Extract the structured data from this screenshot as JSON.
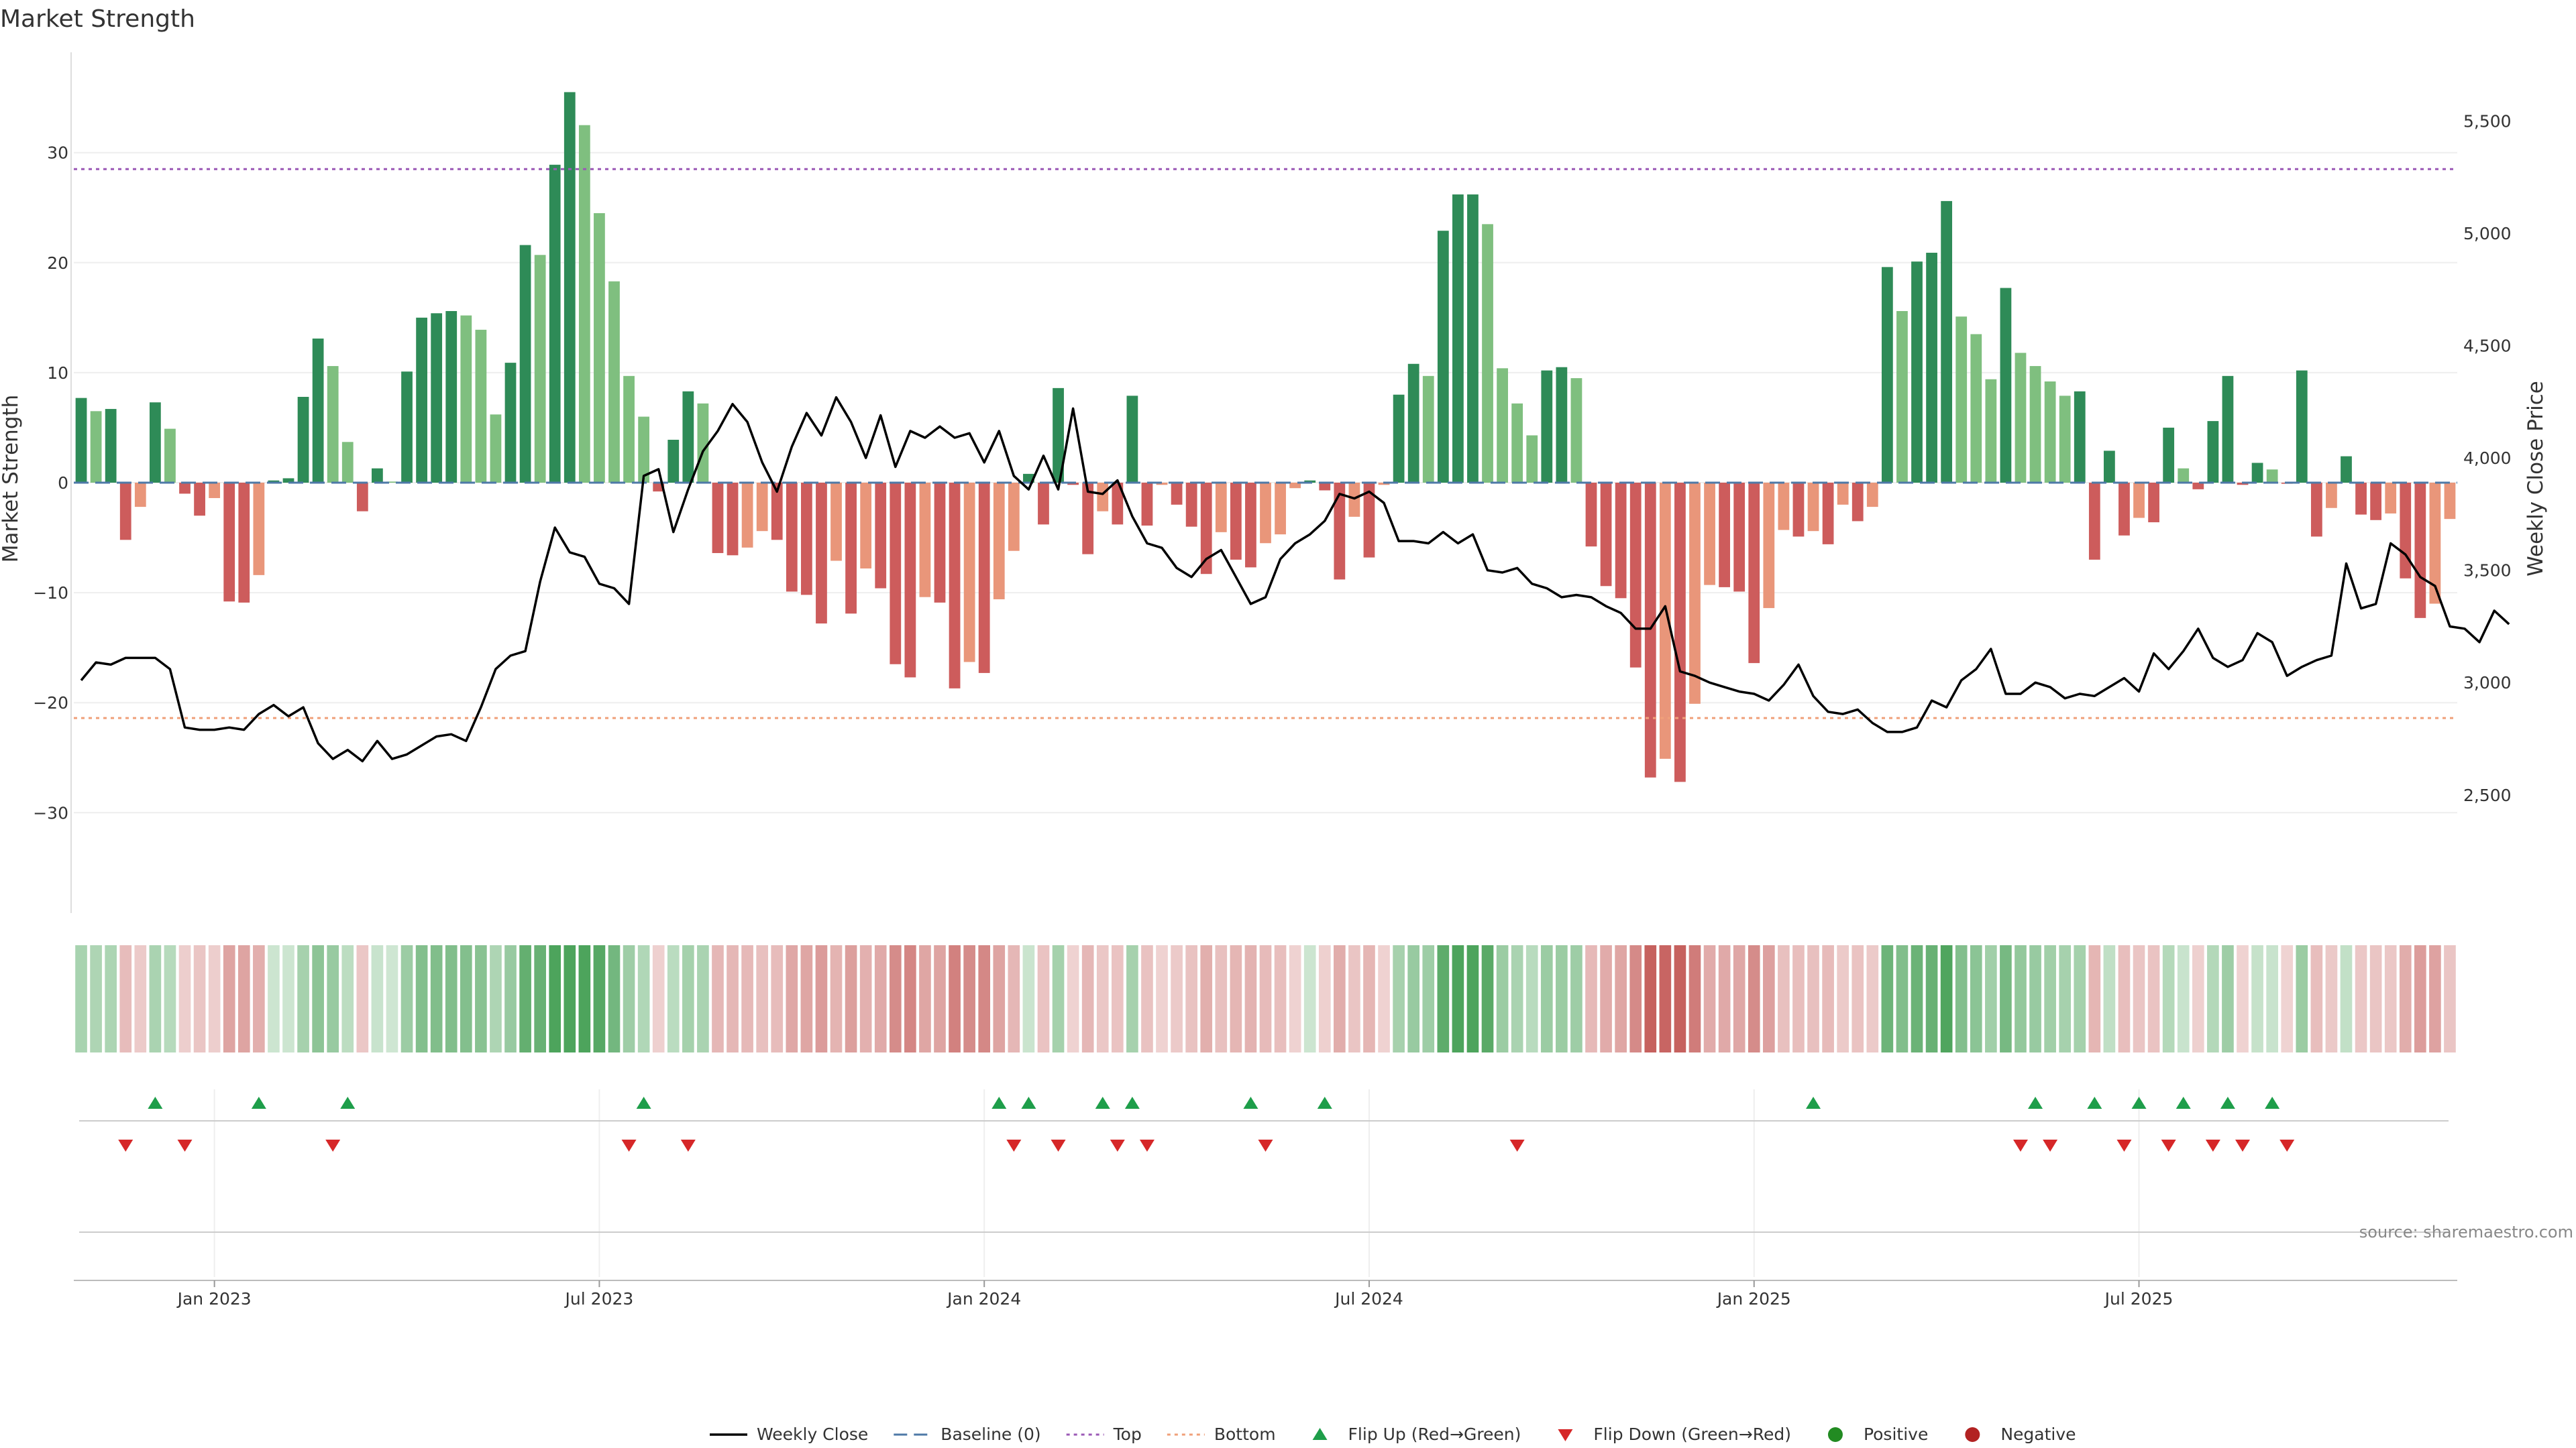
{
  "chart_data": {
    "type": "bar",
    "title": "Market Strength",
    "ylabel": "Market Strength",
    "y2label": "Weekly Close Price",
    "ylim": [
      -39,
      39
    ],
    "y2lim": [
      1980,
      5800
    ],
    "yticks": [
      30,
      20,
      10,
      0,
      -10,
      -20,
      -30
    ],
    "yticklabels": [
      "30",
      "20",
      "10",
      "0",
      "−10",
      "−20",
      "−30"
    ],
    "y2ticks": [
      5500,
      5000,
      4500,
      4000,
      3500,
      3000,
      2500
    ],
    "y2ticklabels": [
      "5,500",
      "5,000",
      "4,500",
      "4,000",
      "3,500",
      "3,000",
      "2,500"
    ],
    "xticklabels": [
      "Jan 2023",
      "Jul 2023",
      "Jan 2024",
      "Jul 2024",
      "Jan 2025",
      "Jul 2025"
    ],
    "xtick_weeks": [
      9,
      35,
      61,
      87,
      113,
      139
    ],
    "top_line": 28.5,
    "bottom_line": -21.4,
    "grid": true,
    "legend_position": "bottom",
    "source": "source: sharemaestro.com",
    "x_start": "2022-10-31",
    "x_interval": "weekly",
    "strength": [
      7.7,
      6.5,
      6.7,
      -5.2,
      -2.2,
      7.3,
      4.9,
      -1.0,
      -3.0,
      -1.4,
      -10.8,
      -10.9,
      -8.4,
      0.2,
      0.4,
      7.8,
      13.1,
      10.6,
      3.7,
      -2.6,
      1.3,
      0.1,
      10.1,
      15.0,
      15.4,
      15.6,
      15.2,
      13.9,
      6.2,
      10.9,
      21.6,
      20.7,
      28.9,
      35.5,
      32.5,
      24.5,
      18.3,
      9.7,
      6.0,
      -0.8,
      3.9,
      8.3,
      7.2,
      -6.4,
      -6.6,
      -5.9,
      -4.4,
      -5.2,
      -9.9,
      -10.2,
      -12.8,
      -7.1,
      -11.9,
      -7.8,
      -9.6,
      -16.5,
      -17.7,
      -10.4,
      -10.9,
      -18.7,
      -16.3,
      -17.3,
      -10.6,
      -6.2,
      0.8,
      -3.8,
      8.6,
      -0.2,
      -6.5,
      -2.6,
      -3.8,
      7.9,
      -3.9,
      -0.2,
      -2.0,
      -4.0,
      -8.3,
      -4.5,
      -7.0,
      -7.7,
      -5.5,
      -4.7,
      -0.5,
      0.2,
      -0.7,
      -8.8,
      -3.1,
      -6.8,
      -0.2,
      8.0,
      10.8,
      9.7,
      22.9,
      26.2,
      26.2,
      23.5,
      10.4,
      7.2,
      4.3,
      10.2,
      10.5,
      9.5,
      -5.8,
      -9.4,
      -10.5,
      -16.8,
      -26.8,
      -25.1,
      -27.2,
      -20.1,
      -9.3,
      -9.5,
      -9.9,
      -16.4,
      -11.4,
      -4.3,
      -4.9,
      -4.4,
      -5.6,
      -2.0,
      -3.5,
      -2.2,
      19.6,
      15.6,
      20.1,
      20.9,
      25.6,
      15.1,
      13.5,
      9.4,
      17.7,
      11.8,
      10.6,
      9.2,
      7.9,
      8.3,
      -7.0,
      2.9,
      -4.8,
      -3.2,
      -3.6,
      5.0,
      1.3,
      -0.6,
      5.6,
      9.7,
      -0.2,
      1.8,
      1.2,
      -0.1,
      10.2,
      -4.9,
      -2.3,
      2.4,
      -2.9,
      -3.4,
      -2.8,
      -8.7,
      -12.3,
      -11.0,
      -3.3
    ],
    "weekly_close": [
      3010,
      3090,
      3080,
      3110,
      3110,
      3110,
      3060,
      2800,
      2790,
      2790,
      2800,
      2790,
      2860,
      2900,
      2850,
      2890,
      2730,
      2660,
      2700,
      2650,
      2740,
      2660,
      2680,
      2720,
      2760,
      2770,
      2740,
      2890,
      3060,
      3120,
      3140,
      3450,
      3690,
      3580,
      3560,
      3440,
      3420,
      3350,
      3920,
      3950,
      3670,
      3860,
      4030,
      4120,
      4240,
      4160,
      3980,
      3850,
      4050,
      4200,
      4100,
      4270,
      4160,
      4000,
      4190,
      3960,
      4120,
      4090,
      4140,
      4090,
      4110,
      3980,
      4120,
      3920,
      3860,
      4010,
      3860,
      4220,
      3850,
      3840,
      3900,
      3740,
      3620,
      3600,
      3510,
      3470,
      3550,
      3590,
      3470,
      3350,
      3380,
      3550,
      3620,
      3660,
      3720,
      3840,
      3820,
      3850,
      3800,
      3630,
      3630,
      3620,
      3670,
      3620,
      3660,
      3500,
      3490,
      3510,
      3440,
      3420,
      3380,
      3390,
      3380,
      3340,
      3310,
      3240,
      3240,
      3340,
      3050,
      3030,
      3000,
      2980,
      2960,
      2950,
      2920,
      2990,
      3080,
      2940,
      2870,
      2860,
      2880,
      2820,
      2780,
      2780,
      2800,
      2920,
      2890,
      3010,
      3060,
      3150,
      2950,
      2950,
      3000,
      2980,
      2930,
      2950,
      2940,
      2980,
      3020,
      2960,
      3130,
      3060,
      3140,
      3240,
      3110,
      3070,
      3100,
      3220,
      3180,
      3030,
      3070,
      3100,
      3120,
      3530,
      3330,
      3350,
      3620,
      3570,
      3470,
      3430,
      3250,
      3240,
      3180,
      3320,
      3260
    ]
  },
  "heat_strip": "weekly strength shading (green = positive, red = negative)",
  "flip_up_weeks": [
    5,
    12,
    18,
    38,
    62,
    64,
    69,
    71,
    79,
    84,
    117,
    132,
    136,
    139,
    142,
    145,
    148
  ],
  "flip_down_weeks": [
    3,
    7,
    17,
    37,
    41,
    63,
    66,
    70,
    72,
    80,
    97,
    131,
    133,
    138,
    141,
    144,
    146,
    149
  ],
  "legend": [
    {
      "label": "Weekly Close",
      "kind": "line",
      "color": "#000000"
    },
    {
      "label": "Baseline (0)",
      "kind": "dash",
      "color": "#4e79a7"
    },
    {
      "label": "Top",
      "kind": "dot",
      "color": "#9b59b6"
    },
    {
      "label": "Bottom",
      "kind": "dot",
      "color": "#f0a07a"
    },
    {
      "label": "Flip Up (Red→Green)",
      "kind": "up",
      "color": "#1e9e4a"
    },
    {
      "label": "Flip Down (Green→Red)",
      "kind": "down",
      "color": "#d62728"
    },
    {
      "label": "Positive",
      "kind": "circle",
      "color": "#228b22"
    },
    {
      "label": "Negative",
      "kind": "circle",
      "color": "#b22222"
    }
  ],
  "colors": {
    "strong_green": "#2e8b57",
    "light_green": "#7fbf7f",
    "strong_red": "#cd5c5c",
    "light_red": "#e9967a",
    "grid": "#eeeeee",
    "price_line": "#000000"
  }
}
